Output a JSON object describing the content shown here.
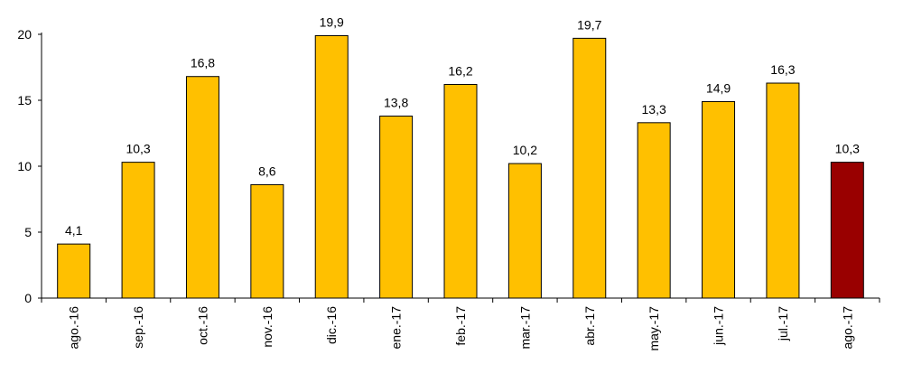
{
  "chart_data": {
    "type": "bar",
    "categories": [
      "ago.-16",
      "sep.-16",
      "oct.-16",
      "nov.-16",
      "dic.-16",
      "ene.-17",
      "feb.-17",
      "mar.-17",
      "abr.-17",
      "may.-17",
      "jun.-17",
      "jul.-17",
      "ago.-17"
    ],
    "values": [
      4.1,
      10.3,
      16.8,
      8.6,
      19.9,
      13.8,
      16.2,
      10.2,
      19.7,
      13.3,
      14.9,
      16.3,
      10.3
    ],
    "value_labels": [
      "4,1",
      "10,3",
      "16,8",
      "8,6",
      "19,9",
      "13,8",
      "16,2",
      "10,2",
      "19,7",
      "13,3",
      "14,9",
      "16,3",
      "10,3"
    ],
    "y_ticks": [
      0,
      5,
      10,
      15,
      20
    ],
    "ylim": [
      0,
      20
    ],
    "grid": false,
    "legend": "none",
    "colors": {
      "bar": "#FFC000",
      "highlight_bar": "#990000",
      "axis": "#000000"
    },
    "highlight_index": 12
  }
}
